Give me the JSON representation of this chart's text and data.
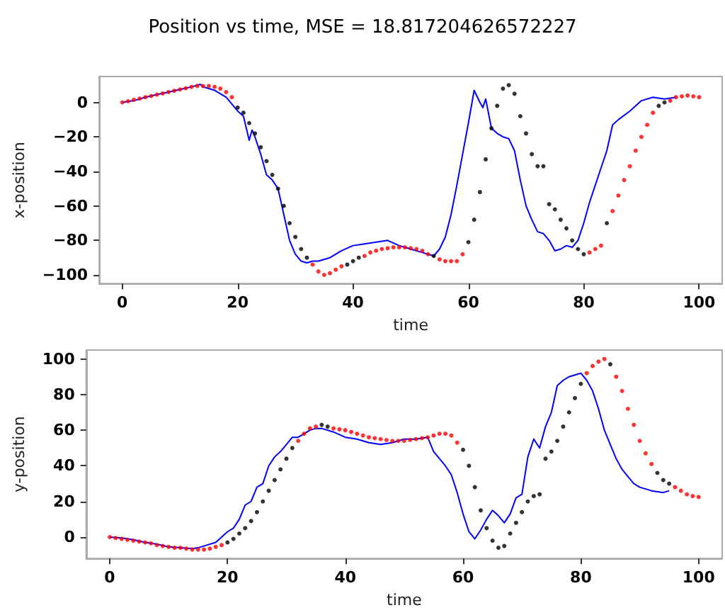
{
  "chart_data": [
    {
      "type": "line",
      "title": "Position vs time, MSE = 18.817204626572227",
      "xlabel": "time",
      "ylabel": "x-position",
      "xlim": [
        -4,
        104
      ],
      "xticks": [
        0,
        20,
        40,
        60,
        80,
        100
      ],
      "ylim": [
        -105,
        15
      ],
      "yticks": [
        -100,
        -80,
        -60,
        -40,
        -20,
        0
      ],
      "series": [
        {
          "color": "#0000ff",
          "x": [
            0,
            2,
            4,
            6,
            8,
            10,
            12,
            13.5,
            14,
            15,
            16,
            17,
            18,
            19,
            20,
            21,
            22,
            22.5,
            23,
            24,
            25,
            26,
            27,
            28,
            29,
            30,
            31,
            32,
            33,
            34,
            36,
            38,
            40,
            42,
            44,
            46,
            48,
            50,
            52,
            54,
            55,
            56,
            57,
            58,
            59,
            60,
            61,
            62,
            62.5,
            63,
            64,
            65,
            66,
            67,
            68,
            69,
            70,
            71,
            72,
            73,
            74,
            75,
            76,
            77,
            78,
            79,
            80,
            81,
            82,
            83,
            84,
            85,
            86,
            88,
            90,
            92,
            94,
            96
          ],
          "values": [
            0,
            1,
            3,
            4.5,
            6,
            7.5,
            9,
            10.5,
            9,
            8,
            7,
            5,
            3,
            -1,
            -5,
            -8,
            -22,
            -16,
            -20,
            -30,
            -42,
            -45,
            -50,
            -65,
            -80,
            -88,
            -92,
            -93,
            -92,
            -92,
            -90,
            -86,
            -83,
            -82,
            -81,
            -80,
            -83,
            -85,
            -87,
            -89,
            -85,
            -78,
            -65,
            -48,
            -30,
            -12,
            7,
            0,
            -3,
            2,
            -15,
            -18,
            -20,
            -21,
            -28,
            -45,
            -60,
            -68,
            -75,
            -76,
            -80,
            -86,
            -85,
            -83,
            -84,
            -80,
            -70,
            -58,
            -48,
            -38,
            -28,
            -13,
            -10,
            -5,
            1,
            3,
            2,
            3
          ]
        },
        {
          "type": "scatter",
          "color": "#000000",
          "marker": "circle",
          "x": [
            20,
            21,
            22,
            23,
            24,
            25,
            26,
            27,
            28,
            29,
            30,
            31,
            32,
            39,
            40,
            41,
            54,
            60,
            61,
            62,
            63,
            64,
            65,
            66,
            67,
            68,
            69,
            70,
            71,
            72,
            73,
            74,
            75,
            76,
            77,
            78,
            79,
            80,
            84,
            93,
            94
          ],
          "values": [
            -3,
            -6,
            -12,
            -18,
            -26,
            -34,
            -42,
            -50,
            -60,
            -70,
            -78,
            -85,
            -90,
            -94,
            -92,
            -90,
            -89,
            -81,
            -68,
            -52,
            -33,
            -15,
            -2,
            8,
            10,
            5,
            -8,
            -18,
            -30,
            -37,
            -37,
            -59,
            -62,
            -68,
            -73,
            -80,
            -85,
            -88,
            -70,
            -2,
            0
          ]
        },
        {
          "type": "scatter",
          "color": "#ff0000",
          "marker": "circle",
          "x": [
            0,
            1,
            2,
            3,
            4,
            5,
            6,
            7,
            8,
            9,
            10,
            11,
            12,
            13,
            14,
            15,
            16,
            17,
            18,
            19,
            33,
            34,
            35,
            36,
            37,
            38,
            42,
            43,
            44,
            45,
            46,
            47,
            48,
            49,
            50,
            51,
            52,
            53,
            55,
            56,
            57,
            58,
            59,
            81,
            82,
            83,
            85,
            86,
            87,
            88,
            89,
            90,
            91,
            92,
            95,
            96,
            97,
            98,
            99,
            100
          ],
          "values": [
            0,
            0.7,
            1.5,
            2.2,
            3,
            3.7,
            4.5,
            5.2,
            6,
            6.7,
            7.5,
            8.2,
            9,
            9.5,
            9.5,
            9.5,
            9,
            8,
            6,
            3,
            -94,
            -98,
            -100,
            -99,
            -97,
            -95,
            -89,
            -87,
            -86,
            -85,
            -84.5,
            -84,
            -84,
            -84,
            -84.5,
            -85,
            -86,
            -88,
            -91,
            -92,
            -92,
            -92,
            -88,
            -87,
            -85,
            -83,
            -63,
            -54,
            -45,
            -37,
            -28,
            -20,
            -13,
            -6,
            1,
            3,
            3.5,
            4,
            3.5,
            3
          ]
        }
      ]
    },
    {
      "type": "line",
      "xlabel": "time",
      "ylabel": "y-position",
      "xlim": [
        -4,
        104
      ],
      "xticks": [
        0,
        20,
        40,
        60,
        80,
        100
      ],
      "ylim": [
        -12,
        105
      ],
      "yticks": [
        0,
        20,
        40,
        60,
        80,
        100
      ],
      "series": [
        {
          "color": "#0000ff",
          "x": [
            0,
            2,
            4,
            6,
            8,
            10,
            12,
            14,
            15,
            16,
            18,
            19,
            20,
            21,
            22,
            23,
            24,
            25,
            26,
            27,
            28,
            29,
            30,
            31,
            32,
            33,
            34,
            35,
            36,
            38,
            40,
            42,
            44,
            46,
            48,
            50,
            52,
            54,
            54.5,
            55,
            56,
            57,
            58,
            59,
            60,
            61,
            62,
            63,
            64,
            65,
            66,
            67,
            68,
            69,
            70,
            71,
            72,
            73,
            74,
            75,
            76,
            77,
            78,
            79,
            80,
            81,
            82,
            83,
            84,
            85,
            86,
            87,
            88,
            89,
            90,
            92,
            94,
            95
          ],
          "values": [
            0,
            -0.5,
            -1.5,
            -3,
            -4,
            -5.5,
            -6,
            -6.5,
            -6,
            -5,
            -3,
            0,
            3,
            5,
            10,
            18,
            20,
            28,
            30,
            40,
            45,
            48,
            52,
            56,
            56,
            58,
            60,
            61,
            61,
            59,
            56,
            55,
            53,
            52,
            53,
            55,
            55,
            56,
            52,
            48,
            44,
            40,
            35,
            25,
            13,
            3,
            -1,
            4,
            10,
            15,
            12,
            8,
            13,
            22,
            24,
            45,
            55,
            50,
            62,
            70,
            85,
            88,
            90,
            91,
            92,
            88,
            82,
            72,
            60,
            52,
            44,
            38,
            34,
            30,
            28,
            26,
            25,
            26
          ]
        },
        {
          "type": "scatter",
          "color": "#000000",
          "marker": "circle",
          "x": [
            20,
            21,
            22,
            23,
            24,
            25,
            26,
            27,
            28,
            29,
            30,
            31,
            36,
            37,
            60,
            61,
            62,
            63,
            64,
            65,
            66,
            67,
            68,
            69,
            70,
            71,
            72,
            73,
            74,
            75,
            76,
            77,
            78,
            79,
            80,
            85,
            93,
            94,
            95
          ],
          "values": [
            -3,
            -1,
            2,
            5,
            9,
            14,
            20,
            26,
            32,
            38,
            44,
            50,
            63,
            62,
            49,
            40,
            28,
            15,
            5,
            -2,
            -6,
            -5,
            2,
            8,
            14,
            20,
            23,
            24,
            44,
            48,
            54,
            62,
            70,
            78,
            86,
            97,
            36,
            32,
            30
          ]
        },
        {
          "type": "scatter",
          "color": "#ff0000",
          "marker": "circle",
          "x": [
            0,
            1,
            2,
            3,
            4,
            5,
            6,
            7,
            8,
            9,
            10,
            11,
            12,
            13,
            14,
            15,
            16,
            17,
            18,
            19,
            32,
            33,
            34,
            35,
            38,
            39,
            40,
            41,
            42,
            43,
            44,
            45,
            46,
            47,
            48,
            49,
            50,
            51,
            52,
            53,
            54,
            55,
            56,
            57,
            58,
            59,
            81,
            82,
            83,
            84,
            86,
            87,
            88,
            89,
            90,
            91,
            92,
            96,
            97,
            98,
            99,
            100
          ],
          "values": [
            0,
            -0.5,
            -1,
            -1.5,
            -2,
            -2.5,
            -3,
            -3.5,
            -4.5,
            -5,
            -5.5,
            -6,
            -6,
            -6.5,
            -7,
            -7,
            -7,
            -6.5,
            -5.5,
            -4.5,
            54,
            58,
            61,
            62,
            61,
            60.5,
            60,
            59,
            58,
            57,
            56,
            55.5,
            55,
            54.5,
            54,
            54,
            54,
            54.5,
            55,
            55.5,
            56,
            57,
            58,
            58,
            57,
            53,
            92,
            96,
            98.5,
            100,
            90,
            82,
            72,
            63,
            54,
            47,
            41,
            28,
            26,
            24,
            23,
            22.5
          ]
        }
      ]
    }
  ]
}
